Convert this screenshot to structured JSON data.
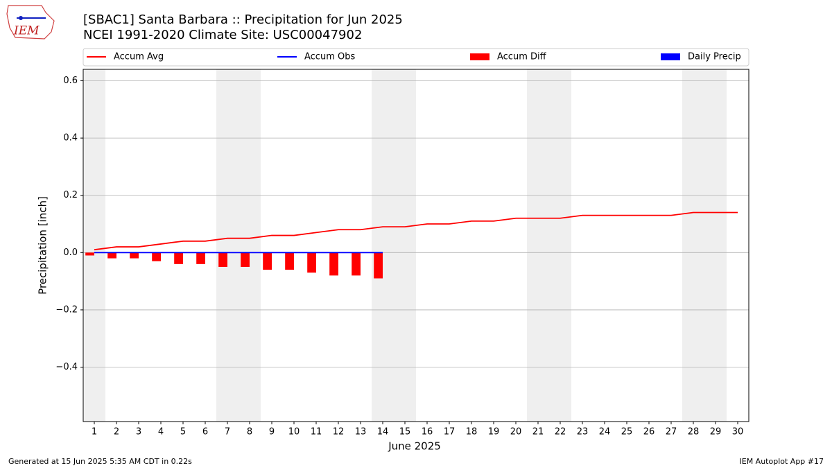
{
  "chart_data": {
    "type": "combo",
    "title": "[SBAC1] Santa Barbara :: Precipitation for Jun 2025",
    "subtitle": "NCEI 1991-2020 Climate Site: USC00047902",
    "logo_text": "IEM",
    "xlabel": "June 2025",
    "ylabel": "Precipitation [inch]",
    "footer_left": "Generated at 15 Jun 2025 5:35 AM CDT in 0.22s",
    "footer_right": "IEM Autoplot App #17",
    "x": [
      1,
      2,
      3,
      4,
      5,
      6,
      7,
      8,
      9,
      10,
      11,
      12,
      13,
      14,
      15,
      16,
      17,
      18,
      19,
      20,
      21,
      22,
      23,
      24,
      25,
      26,
      27,
      28,
      29,
      30
    ],
    "xlim": [
      0.5,
      30.5
    ],
    "xticks": [
      1,
      2,
      3,
      4,
      5,
      6,
      7,
      8,
      9,
      10,
      11,
      12,
      13,
      14,
      15,
      16,
      17,
      18,
      19,
      20,
      21,
      22,
      23,
      24,
      25,
      26,
      27,
      28,
      29,
      30
    ],
    "ylim": [
      -0.59,
      0.64
    ],
    "yticks": [
      {
        "value": -0.4,
        "label": "−0.4"
      },
      {
        "value": -0.2,
        "label": "−0.2"
      },
      {
        "value": 0,
        "label": "0.0"
      },
      0.2,
      0.4,
      0.6
    ],
    "grid": true,
    "weekend_shading": [
      [
        0.5,
        1.5
      ],
      [
        6.5,
        8.5
      ],
      [
        13.5,
        15.5
      ],
      [
        20.5,
        22.5
      ],
      [
        27.5,
        29.5
      ]
    ],
    "series": [
      {
        "name": "Accum Avg",
        "kind": "line",
        "color": "#ff0000",
        "values": [
          0.01,
          0.02,
          0.02,
          0.03,
          0.04,
          0.04,
          0.05,
          0.05,
          0.06,
          0.06,
          0.07,
          0.08,
          0.08,
          0.09,
          0.09,
          0.1,
          0.1,
          0.11,
          0.11,
          0.12,
          0.12,
          0.12,
          0.13,
          0.13,
          0.13,
          0.13,
          0.13,
          0.14,
          0.14,
          0.14
        ]
      },
      {
        "name": "Accum Obs",
        "kind": "line",
        "color": "#0000ff",
        "values": [
          0,
          0,
          0,
          0,
          0,
          0,
          0,
          0,
          0,
          0,
          0,
          0,
          0,
          0,
          null,
          null,
          null,
          null,
          null,
          null,
          null,
          null,
          null,
          null,
          null,
          null,
          null,
          null,
          null,
          null
        ]
      },
      {
        "name": "Accum Diff",
        "kind": "bar-left",
        "color": "#ff0000",
        "values": [
          -0.01,
          -0.02,
          -0.02,
          -0.03,
          -0.04,
          -0.04,
          -0.05,
          -0.05,
          -0.06,
          -0.06,
          -0.07,
          -0.08,
          -0.08,
          -0.09,
          null,
          null,
          null,
          null,
          null,
          null,
          null,
          null,
          null,
          null,
          null,
          null,
          null,
          null,
          null,
          null
        ]
      },
      {
        "name": "Daily Precip",
        "kind": "bar-right",
        "color": "#0000ff",
        "values": [
          0,
          0,
          0,
          0,
          0,
          0,
          0,
          0,
          0,
          0,
          0,
          0,
          0,
          0,
          null,
          null,
          null,
          null,
          null,
          null,
          null,
          null,
          null,
          null,
          null,
          null,
          null,
          null,
          null,
          null
        ]
      }
    ]
  }
}
